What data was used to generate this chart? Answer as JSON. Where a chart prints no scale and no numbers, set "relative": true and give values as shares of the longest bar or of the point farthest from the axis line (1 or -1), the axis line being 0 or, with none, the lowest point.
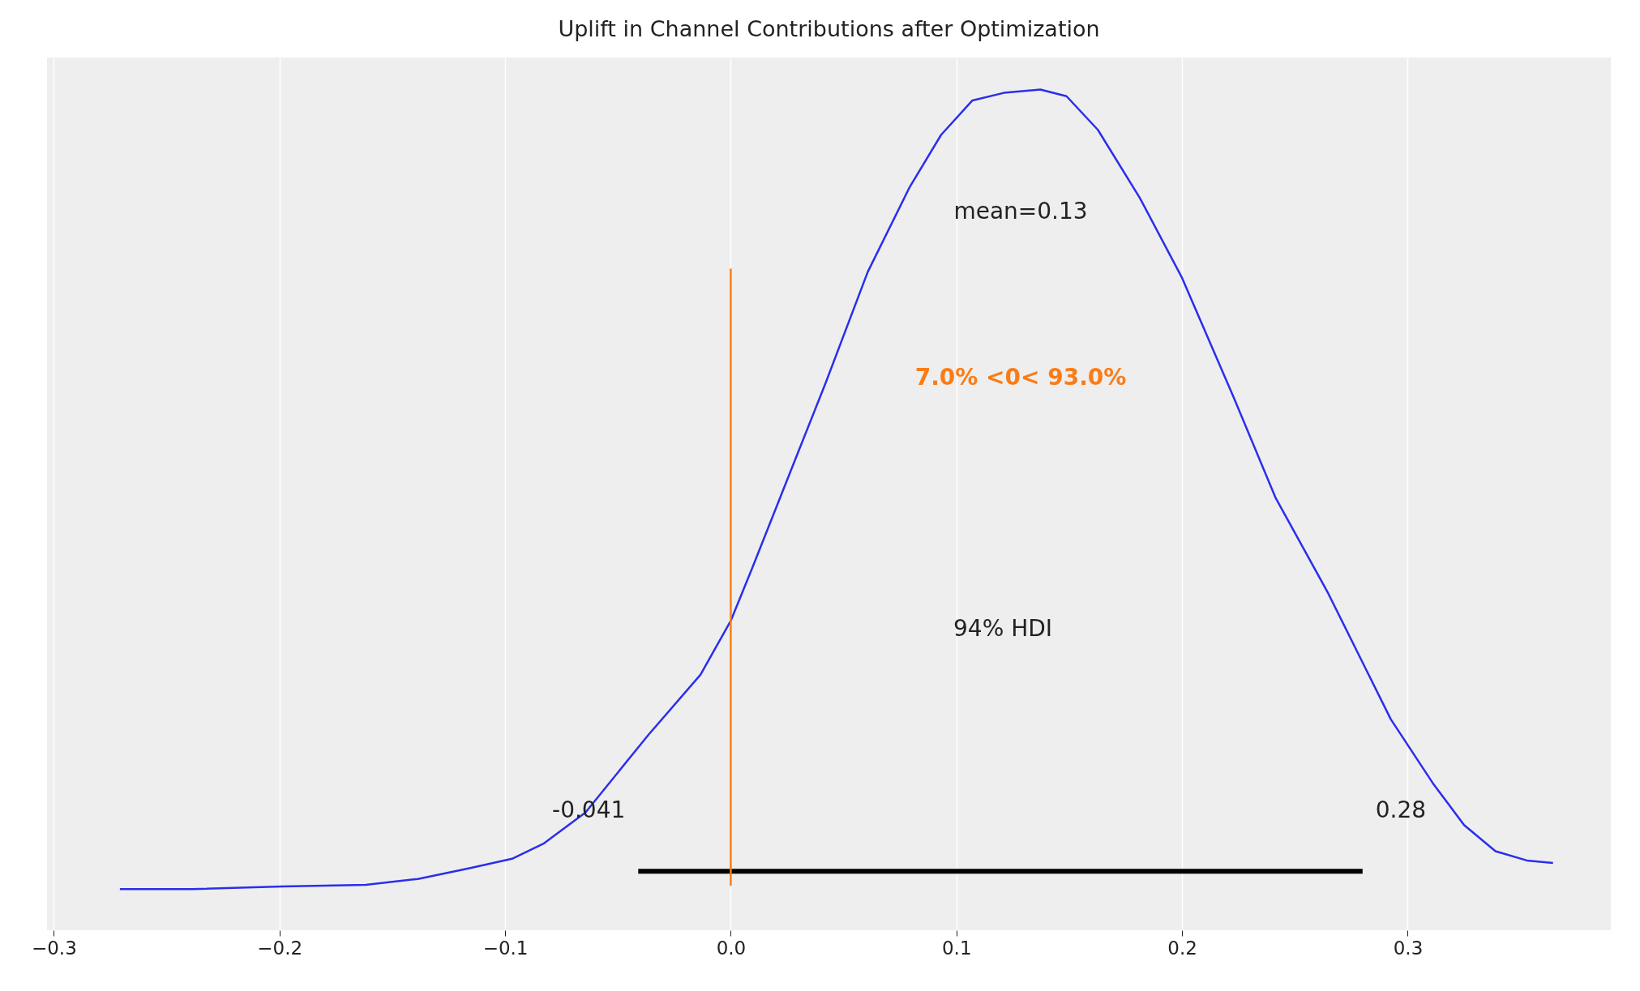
{
  "chart_data": {
    "type": "line",
    "title": "Uplift in Channel Contributions after Optimization",
    "relative": true,
    "xlim": [
      -0.303,
      0.39
    ],
    "xticks": [
      {
        "value": -0.3,
        "label": "−0.3"
      },
      {
        "value": -0.2,
        "label": "−0.2"
      },
      {
        "value": -0.1,
        "label": "−0.1"
      },
      {
        "value": 0,
        "label": "0.0"
      },
      0.1,
      0.2,
      0.3
    ],
    "grid": "x",
    "tick_labels": "x",
    "series": [
      {
        "color": "#2a2eec",
        "x": [
          -0.2707,
          -0.2383,
          -0.1989,
          -0.1618,
          -0.1386,
          -0.1154,
          -0.0969,
          -0.083,
          -0.0644,
          -0.0366,
          -0.0134,
          0,
          0.0097,
          0.0283,
          0.0422,
          0.0607,
          0.0793,
          0.0932,
          0.1071,
          0.121,
          0.1372,
          0.1488,
          0.1627,
          0.1813,
          0.1998,
          0.223,
          0.2415,
          0.2647,
          0.2786,
          0.2925,
          0.3111,
          0.325,
          0.3389,
          0.3528,
          0.3644
        ],
        "values": [
          0.049,
          0.049,
          0.052,
          0.054,
          0.061,
          0.074,
          0.085,
          0.103,
          0.14,
          0.232,
          0.304,
          0.368,
          0.432,
          0.558,
          0.652,
          0.783,
          0.884,
          0.946,
          0.987,
          0.996,
          1,
          0.992,
          0.952,
          0.871,
          0.777,
          0.633,
          0.514,
          0.401,
          0.326,
          0.251,
          0.175,
          0.125,
          0.094,
          0.083,
          0.08
        ]
      },
      {
        "color": "#000000",
        "x": [
          -0.041,
          0.28
        ],
        "values": [
          0.07,
          0.07
        ]
      },
      {
        "color": "#fa7c17",
        "x": [
          0,
          0
        ],
        "values": [
          0.053,
          0.787
        ]
      }
    ],
    "annotations": [
      "mean=0.13",
      "7.0% <0< 93.0%",
      "94% HDI",
      {
        "text": "-0.041",
        "x": -0.041,
        "y": 0.07
      },
      {
        "text": "0.28",
        "x": 0.28,
        "y": 0.07
      }
    ]
  }
}
